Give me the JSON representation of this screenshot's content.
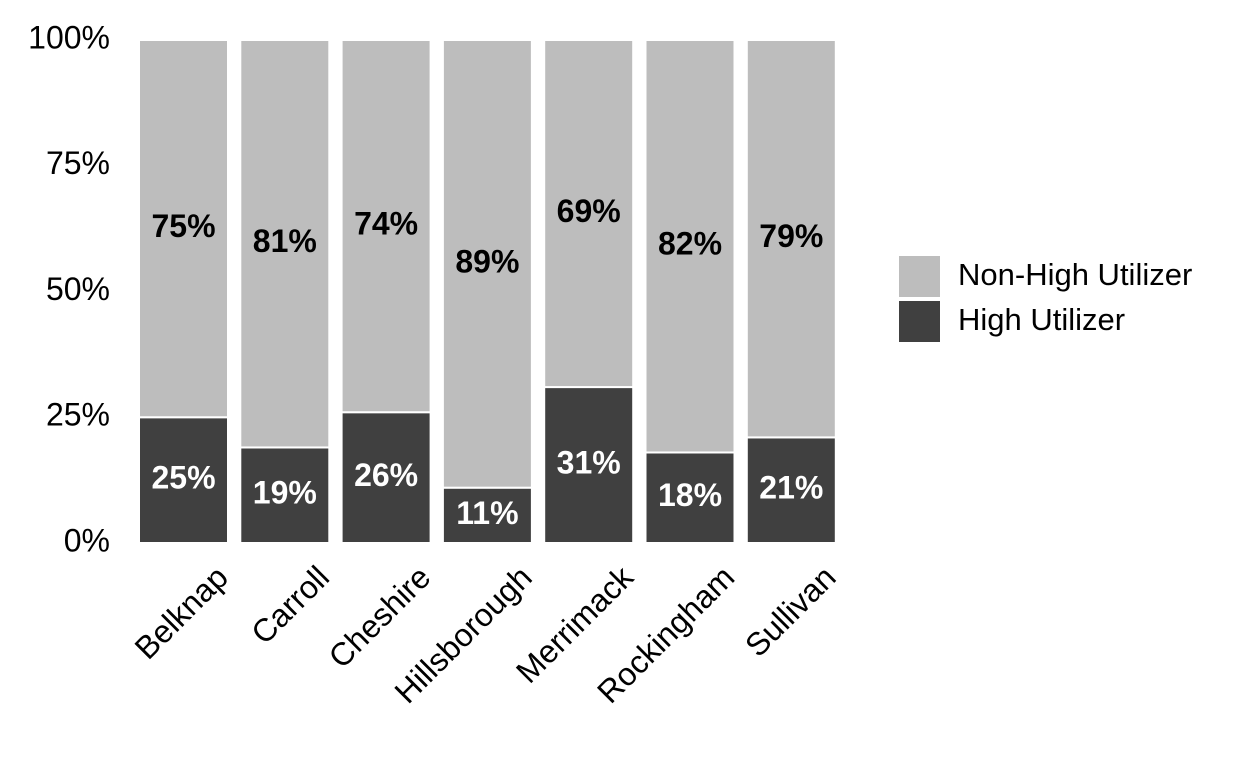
{
  "chart_data": {
    "type": "bar",
    "stacked": true,
    "normalized": true,
    "categories": [
      "Belknap",
      "Carroll",
      "Cheshire",
      "Hillsborough",
      "Merrimack",
      "Rockingham",
      "Sullivan"
    ],
    "series": [
      {
        "name": "High Utilizer",
        "values": [
          25,
          19,
          26,
          11,
          31,
          18,
          21
        ],
        "labels": [
          "25%",
          "19%",
          "26%",
          "11%",
          "31%",
          "18%",
          "21%"
        ],
        "color": "#404040",
        "label_color": "#ffffff"
      },
      {
        "name": "Non-High Utilizer",
        "values": [
          75,
          81,
          74,
          89,
          69,
          82,
          79
        ],
        "labels": [
          "75%",
          "81%",
          "74%",
          "89%",
          "69%",
          "82%",
          "79%"
        ],
        "color": "#bdbdbd",
        "label_color": "#000000"
      }
    ],
    "ylim": [
      0,
      100
    ],
    "yticks": [
      "0%",
      "25%",
      "50%",
      "75%",
      "100%"
    ],
    "ytick_values": [
      0,
      25,
      50,
      75,
      100
    ],
    "grid": false,
    "legend_position": "right",
    "legend_order": [
      "Non-High Utilizer",
      "High Utilizer"
    ],
    "xtick_rotation": "45 degrees",
    "title": "",
    "xlabel": "",
    "ylabel": ""
  }
}
